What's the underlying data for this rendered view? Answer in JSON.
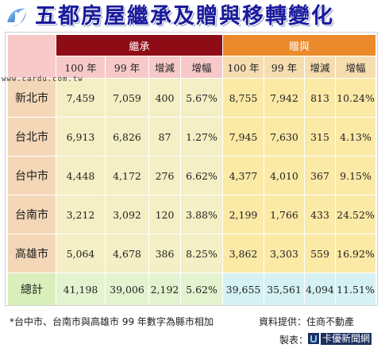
{
  "title": "五都房屋繼承及贈與移轉變化",
  "watermark": "www.cardu.com.tw",
  "groups": {
    "inherit": "繼承",
    "gift": "贈與"
  },
  "columns": [
    "100 年",
    "99 年",
    "增減",
    "增幅"
  ],
  "rows": [
    {
      "city": "新北市",
      "inherit": [
        "7,459",
        "7,059",
        "400",
        "5.67%"
      ],
      "gift": [
        "8,755",
        "7,942",
        "813",
        "10.24%"
      ]
    },
    {
      "city": "台北市",
      "inherit": [
        "6,913",
        "6,826",
        "87",
        "1.27%"
      ],
      "gift": [
        "7,945",
        "7,630",
        "315",
        "4.13%"
      ]
    },
    {
      "city": "台中市",
      "inherit": [
        "4,448",
        "4,172",
        "276",
        "6.62%"
      ],
      "gift": [
        "4,377",
        "4,010",
        "367",
        "9.15%"
      ]
    },
    {
      "city": "台南市",
      "inherit": [
        "3,212",
        "3,092",
        "120",
        "3.88%"
      ],
      "gift": [
        "2,199",
        "1,766",
        "433",
        "24.52%"
      ]
    },
    {
      "city": "高雄市",
      "inherit": [
        "5,064",
        "4,678",
        "386",
        "8.25%"
      ],
      "gift": [
        "3,862",
        "3,303",
        "559",
        "16.92%"
      ]
    }
  ],
  "total": {
    "label": "總計",
    "inherit": [
      "41,198",
      "39,006",
      "2,192",
      "5.62%"
    ],
    "gift": [
      "39,655",
      "35,561",
      "4,094",
      "11.51%"
    ]
  },
  "footnote": "*台中市、台南市與高雄市 99 年數字為縣市相加",
  "source": "資料提供：住商不動產",
  "maker_label": "製表：",
  "brand": "卡優新聞網",
  "colors": {
    "title": "#1a1a9c",
    "inherit_band": "#8e0c15",
    "gift_band": "#ea8a2a"
  }
}
